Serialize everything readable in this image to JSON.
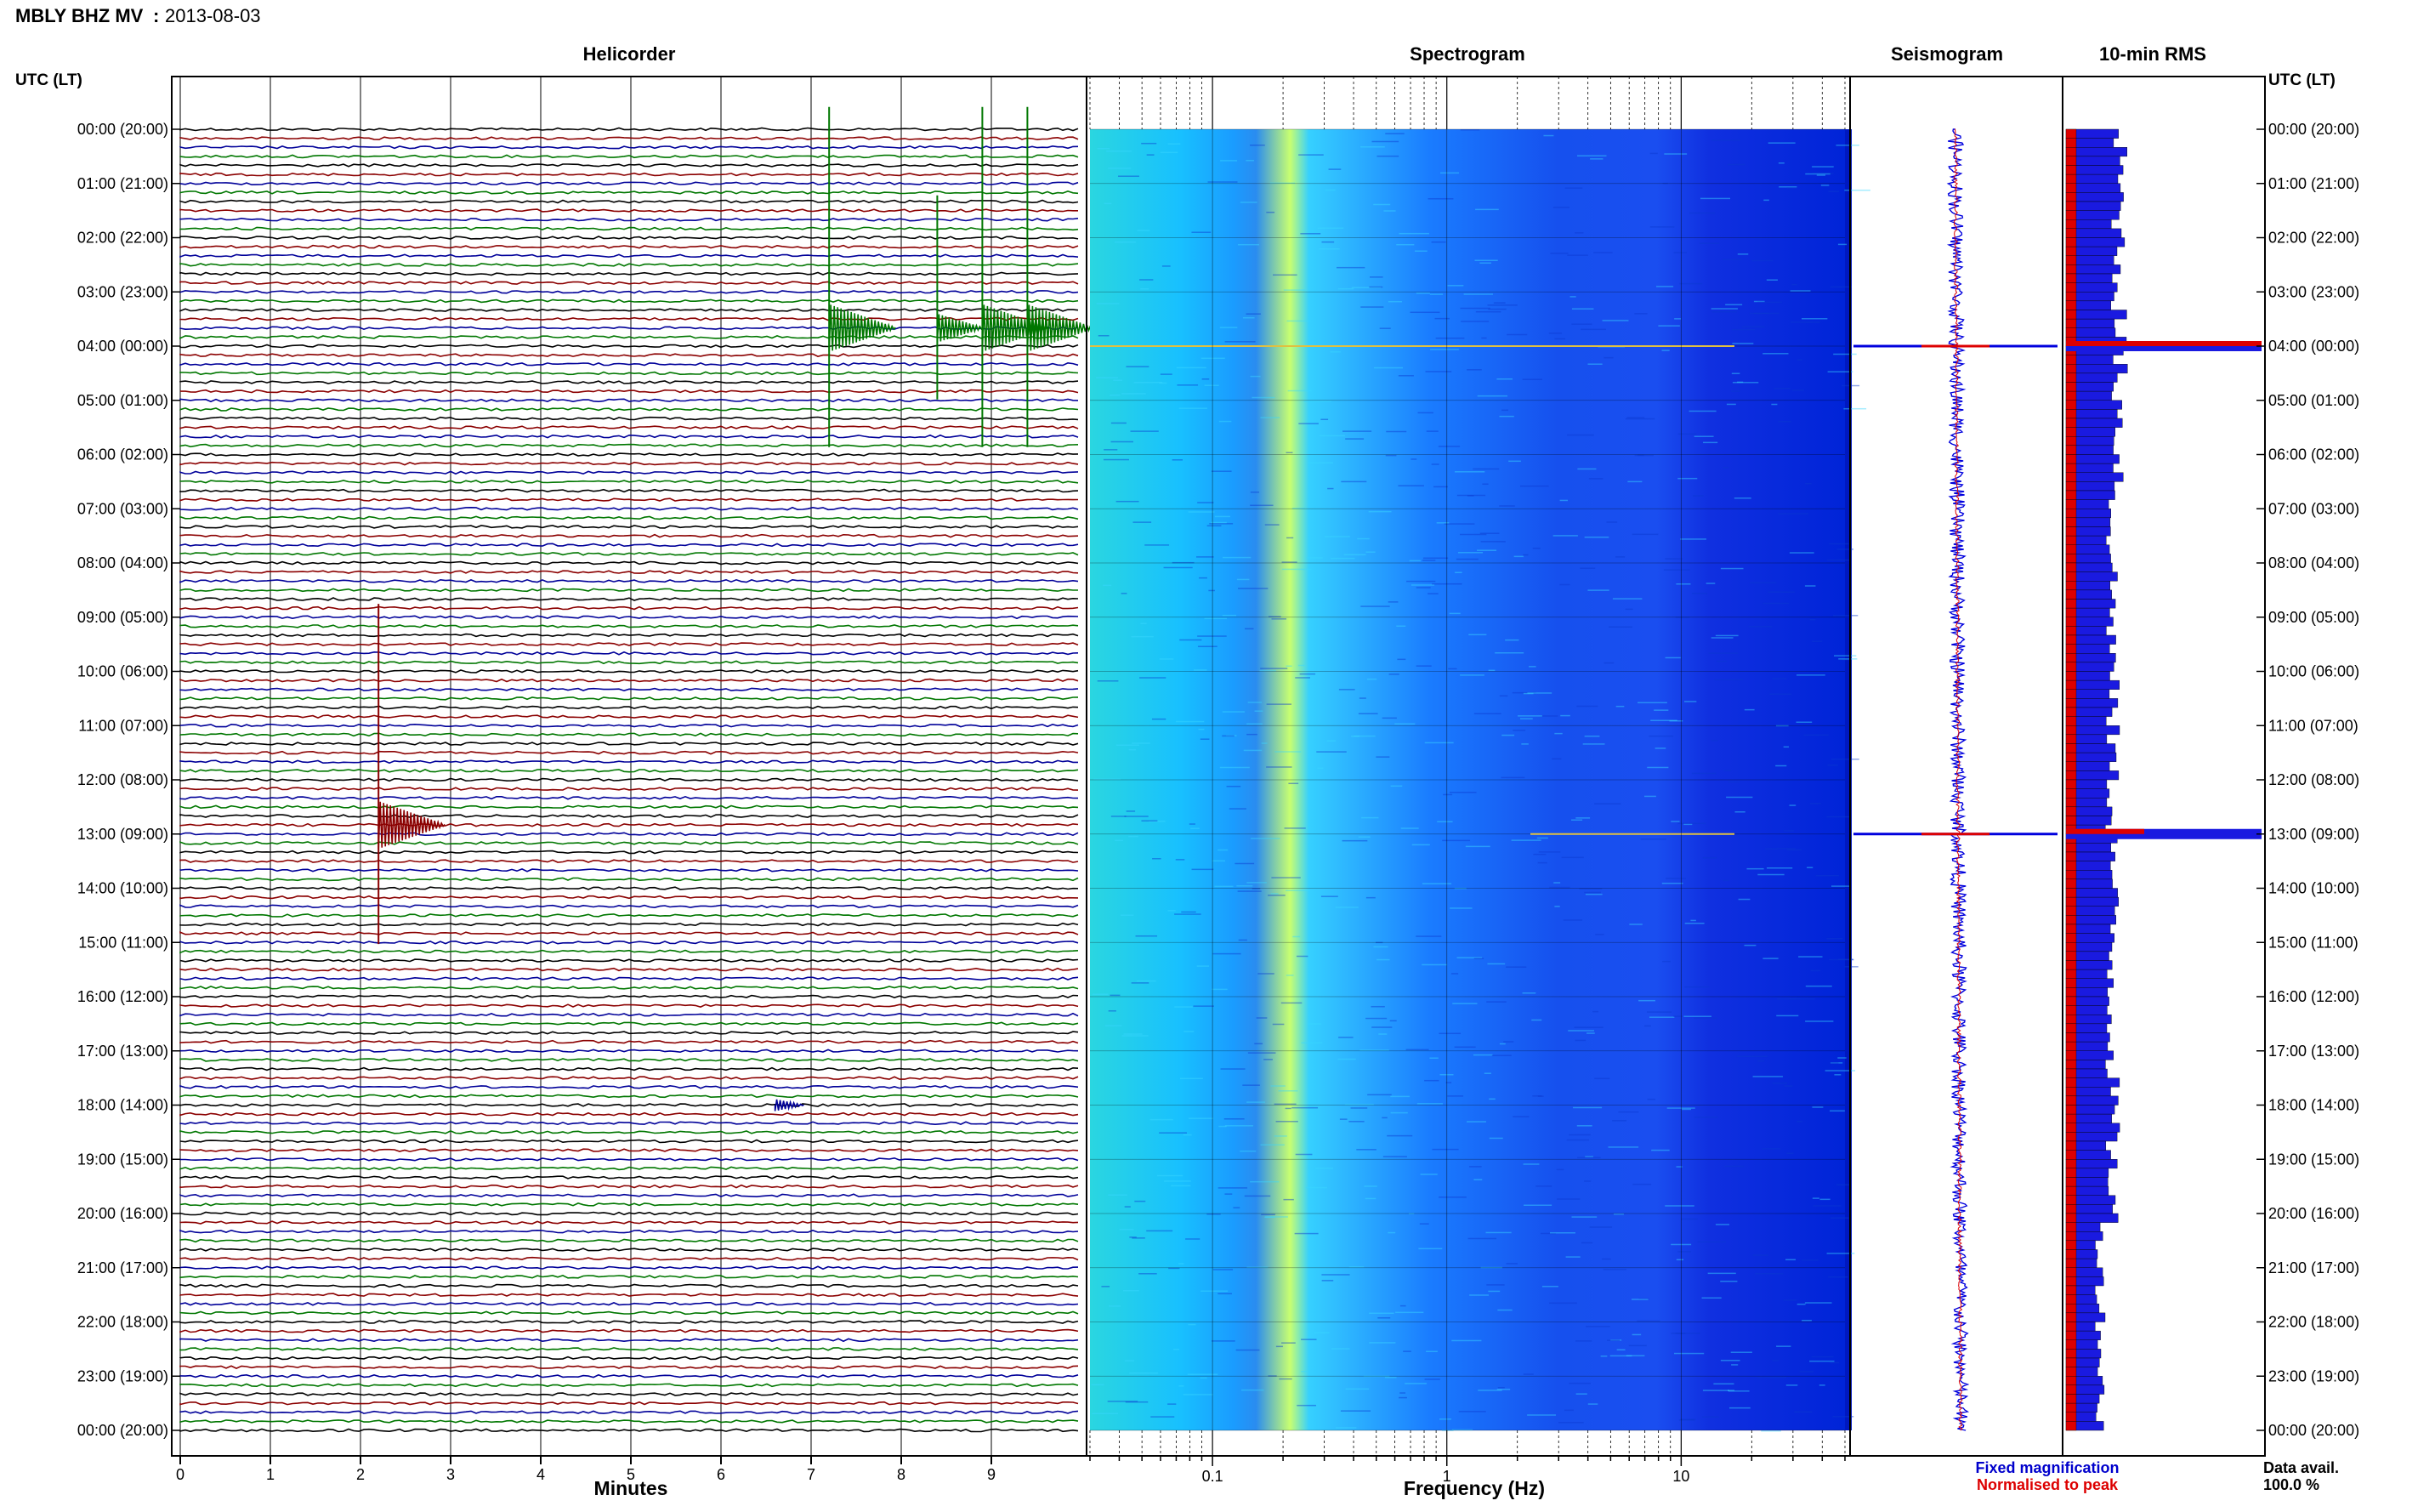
{
  "header": {
    "station": "MBLY BHZ MV",
    "separator": ":",
    "date": "2013-08-03"
  },
  "panels": {
    "helicorder": "Helicorder",
    "spectrogram": "Spectrogram",
    "seismogram": "Seismogram",
    "rms": "10-min RMS"
  },
  "axes": {
    "left_time_label": "UTC (LT)",
    "right_time_label": "UTC (LT)",
    "minutes_label": "Minutes",
    "frequency_label": "Frequency (Hz)",
    "minute_ticks": [
      "0",
      "1",
      "2",
      "3",
      "4",
      "5",
      "6",
      "7",
      "8",
      "9"
    ],
    "frequency_ticks": [
      "0.1",
      "1",
      "10"
    ],
    "time_ticks": [
      "00:00 (20:00)",
      "01:00 (21:00)",
      "02:00 (22:00)",
      "03:00 (23:00)",
      "04:00 (00:00)",
      "05:00 (01:00)",
      "06:00 (02:00)",
      "07:00 (03:00)",
      "08:00 (04:00)",
      "09:00 (05:00)",
      "10:00 (06:00)",
      "11:00 (07:00)",
      "12:00 (08:00)",
      "13:00 (09:00)",
      "14:00 (10:00)",
      "15:00 (11:00)",
      "16:00 (12:00)",
      "17:00 (13:00)",
      "18:00 (14:00)",
      "19:00 (15:00)",
      "20:00 (16:00)",
      "21:00 (17:00)",
      "22:00 (18:00)",
      "23:00 (19:00)",
      "00:00 (20:00)"
    ]
  },
  "legend": {
    "fixed": "Fixed magnification",
    "normalised": "Normalised to peak",
    "data_avail_label": "Data avail.",
    "data_avail_value": "100.0 %",
    "fixed_color": "#0000cc",
    "normalised_color": "#dd0000"
  },
  "colors": {
    "trace_cycle": [
      "#000000",
      "#8b0000",
      "#000099",
      "#007700"
    ],
    "spec_low": "#0022dd",
    "spec_mid": "#22b8ff",
    "spec_high": "#d8ff60"
  },
  "chart_data": [
    {
      "type": "line",
      "title": "Helicorder",
      "xlabel": "Minutes",
      "xlim": [
        0,
        10
      ],
      "rows": 144,
      "minutes_per_row": 10,
      "row_colors_cycle": [
        "black",
        "darkred",
        "blue",
        "green"
      ],
      "events": [
        {
          "time_utc": "03:40",
          "minute": 7.2,
          "amplitude": "large",
          "color": "green"
        },
        {
          "time_utc": "03:40",
          "minute": 8.4,
          "amplitude": "medium",
          "color": "green"
        },
        {
          "time_utc": "03:40",
          "minute": 8.9,
          "amplitude": "large",
          "color": "green"
        },
        {
          "time_utc": "03:40",
          "minute": 9.4,
          "amplitude": "large",
          "color": "green"
        },
        {
          "time_utc": "12:50",
          "minute": 2.2,
          "amplitude": "large",
          "color": "darkred"
        },
        {
          "time_utc": "18:00",
          "minute": 6.6,
          "amplitude": "small",
          "color": "blue"
        }
      ]
    },
    {
      "type": "heatmap",
      "title": "Spectrogram",
      "xlabel": "Frequency (Hz)",
      "xscale": "log",
      "xlim": [
        0.03,
        50
      ],
      "peak_band_hz": 0.2,
      "ylim": [
        "00:00",
        "24:00"
      ]
    },
    {
      "type": "line",
      "title": "Seismogram",
      "series": [
        {
          "name": "Fixed magnification",
          "color": "blue"
        },
        {
          "name": "Normalised to peak",
          "color": "red"
        }
      ],
      "spikes_utc": [
        "04:00",
        "13:00"
      ]
    },
    {
      "type": "bar",
      "title": "10-min RMS",
      "orientation": "horizontal",
      "baseline_rms": 0.22,
      "peaks": [
        {
          "time_utc": "04:00",
          "value": 1.0
        },
        {
          "time_utc": "13:00",
          "value": 1.0
        }
      ]
    }
  ]
}
